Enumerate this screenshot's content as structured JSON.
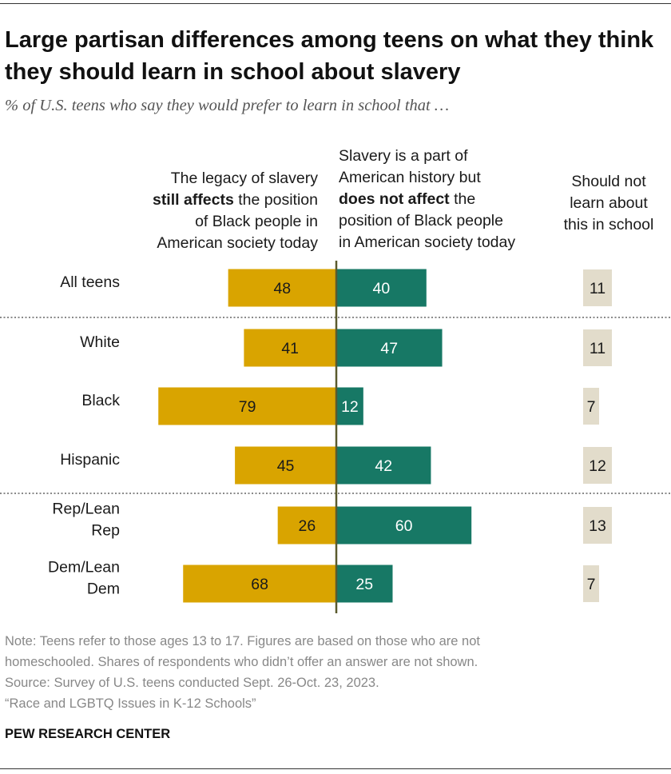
{
  "title": "Large partisan differences among teens on what they think they should learn in school about slavery",
  "subtitle": "% of U.S. teens who say they would prefer to learn in school that …",
  "columns": {
    "still_affects": {
      "pre": "The legacy of slavery",
      "bold": "still affects",
      "post": " the position",
      "line3": "of Black people in",
      "line4": "American society today"
    },
    "does_not_affect": {
      "line1": "Slavery is a part of",
      "line2": "American history but",
      "bold": "does not affect",
      "post": " the",
      "line4": "position of Black people",
      "line5": "in American society today"
    },
    "should_not": {
      "line1": "Should not",
      "line2": "learn about",
      "line3": "this in school"
    }
  },
  "colors": {
    "still_affects": "#d9a400",
    "does_not_affect": "#177865",
    "should_not": "#e2dccb",
    "divider": "#5a5a2e"
  },
  "chart_data": {
    "type": "bar",
    "categories": [
      "All teens",
      "White",
      "Black",
      "Hispanic",
      "Rep/Lean Rep",
      "Dem/Lean Dem"
    ],
    "category_lines": [
      [
        "All teens"
      ],
      [
        "White"
      ],
      [
        "Black"
      ],
      [
        "Hispanic"
      ],
      [
        "Rep/Lean",
        "Rep"
      ],
      [
        "Dem/Lean",
        "Dem"
      ]
    ],
    "series": [
      {
        "name": "The legacy of slavery still affects the position of Black people in American society today",
        "values": [
          48,
          41,
          79,
          45,
          26,
          68
        ]
      },
      {
        "name": "Slavery is a part of American history but does not affect the position of Black people in American society today",
        "values": [
          40,
          47,
          12,
          42,
          60,
          25
        ]
      },
      {
        "name": "Should not learn about this in school",
        "values": [
          11,
          11,
          7,
          12,
          13,
          7
        ]
      }
    ]
  },
  "notes": [
    "Note: Teens refer to those ages 13 to 17. Figures are based on those who are not",
    "homeschooled. Shares of respondents who didn’t offer an answer are not shown.",
    "Source: Survey of U.S. teens conducted Sept. 26-Oct. 23, 2023.",
    "“Race and LGBTQ Issues in K-12 Schools”"
  ],
  "source_org": "PEW RESEARCH CENTER"
}
